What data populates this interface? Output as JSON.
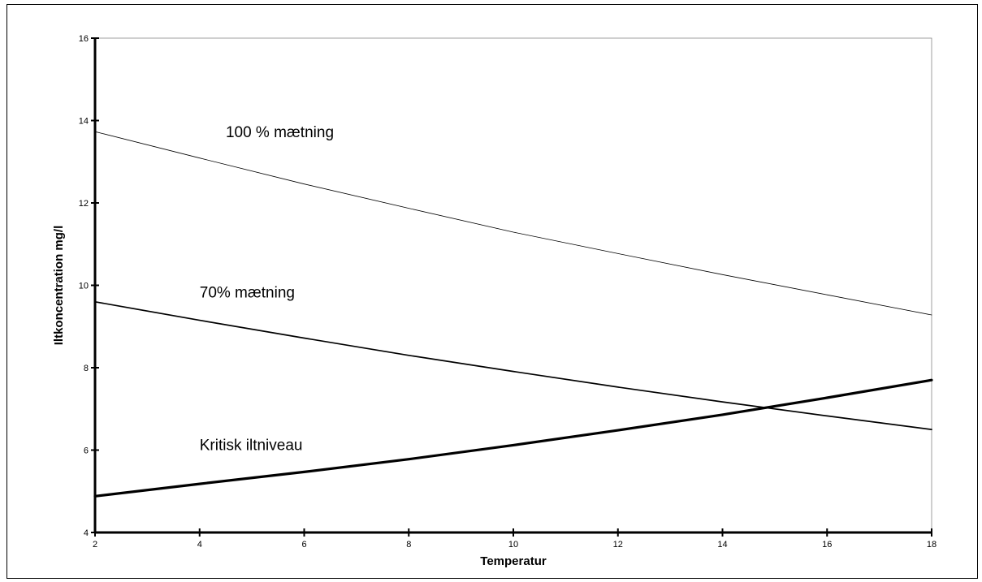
{
  "chart_data": {
    "type": "line",
    "title": "",
    "xlabel": "Temperatur",
    "ylabel": "Iltkoncentration mg/l",
    "xlim": [
      2,
      18
    ],
    "ylim": [
      4,
      16
    ],
    "xticks": [
      2,
      4,
      6,
      8,
      10,
      12,
      14,
      16,
      18
    ],
    "yticks": [
      4,
      6,
      8,
      10,
      12,
      14,
      16
    ],
    "grid": false,
    "legend": "none",
    "x": [
      2,
      4,
      6,
      8,
      10,
      12,
      14,
      16,
      18
    ],
    "series": [
      {
        "name": "100 % mætning",
        "values": [
          13.73,
          13.09,
          12.46,
          11.87,
          11.29,
          10.77,
          10.26,
          9.77,
          9.28
        ],
        "color": "#000000",
        "line_weight": "thin",
        "label_anchor": {
          "x": 4.5,
          "y": 13.6
        }
      },
      {
        "name": "70% mætning",
        "values": [
          9.6,
          9.15,
          8.72,
          8.3,
          7.91,
          7.53,
          7.17,
          6.83,
          6.5
        ],
        "color": "#000000",
        "line_weight": "medium",
        "label_anchor": {
          "x": 4.0,
          "y": 9.7
        }
      },
      {
        "name": "Kritisk iltniveau",
        "values": [
          4.88,
          5.18,
          5.47,
          5.78,
          6.12,
          6.48,
          6.86,
          7.27,
          7.7
        ],
        "color": "#000000",
        "line_weight": "thick",
        "label_anchor": {
          "x": 4.0,
          "y": 6.0
        }
      }
    ]
  }
}
